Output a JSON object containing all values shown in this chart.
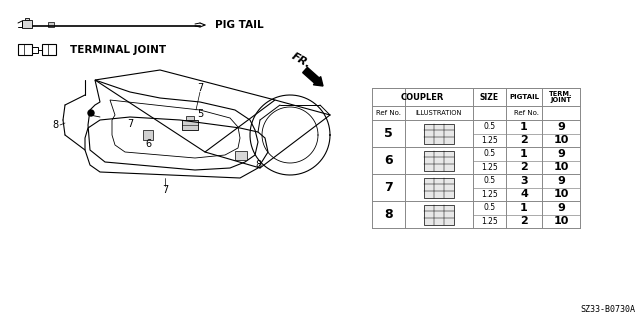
{
  "bg_color": "#ffffff",
  "fig_width": 6.39,
  "fig_height": 3.2,
  "dpi": 100,
  "title_label": "PIG TAIL",
  "label2": "TERMINAL JOINT",
  "fr_label": "FR.",
  "table_rows": [
    {
      "ref": "5",
      "size1": "0.5",
      "pig1": "1",
      "term1": "9",
      "size2": "1.25",
      "pig2": "2",
      "term2": "10"
    },
    {
      "ref": "6",
      "size1": "0.5",
      "pig1": "1",
      "term1": "9",
      "size2": "1.25",
      "pig2": "2",
      "term2": "10"
    },
    {
      "ref": "7",
      "size1": "0.5",
      "pig1": "3",
      "term1": "9",
      "size2": "1.25",
      "pig2": "4",
      "term2": "10"
    },
    {
      "ref": "8",
      "size1": "0.5",
      "pig1": "1",
      "term1": "9",
      "size2": "1.25",
      "pig2": "2",
      "term2": "10"
    }
  ],
  "part_number": "SZ33-B0730A",
  "line_color": "#000000",
  "text_color": "#000000",
  "table_line_color": "#888888"
}
